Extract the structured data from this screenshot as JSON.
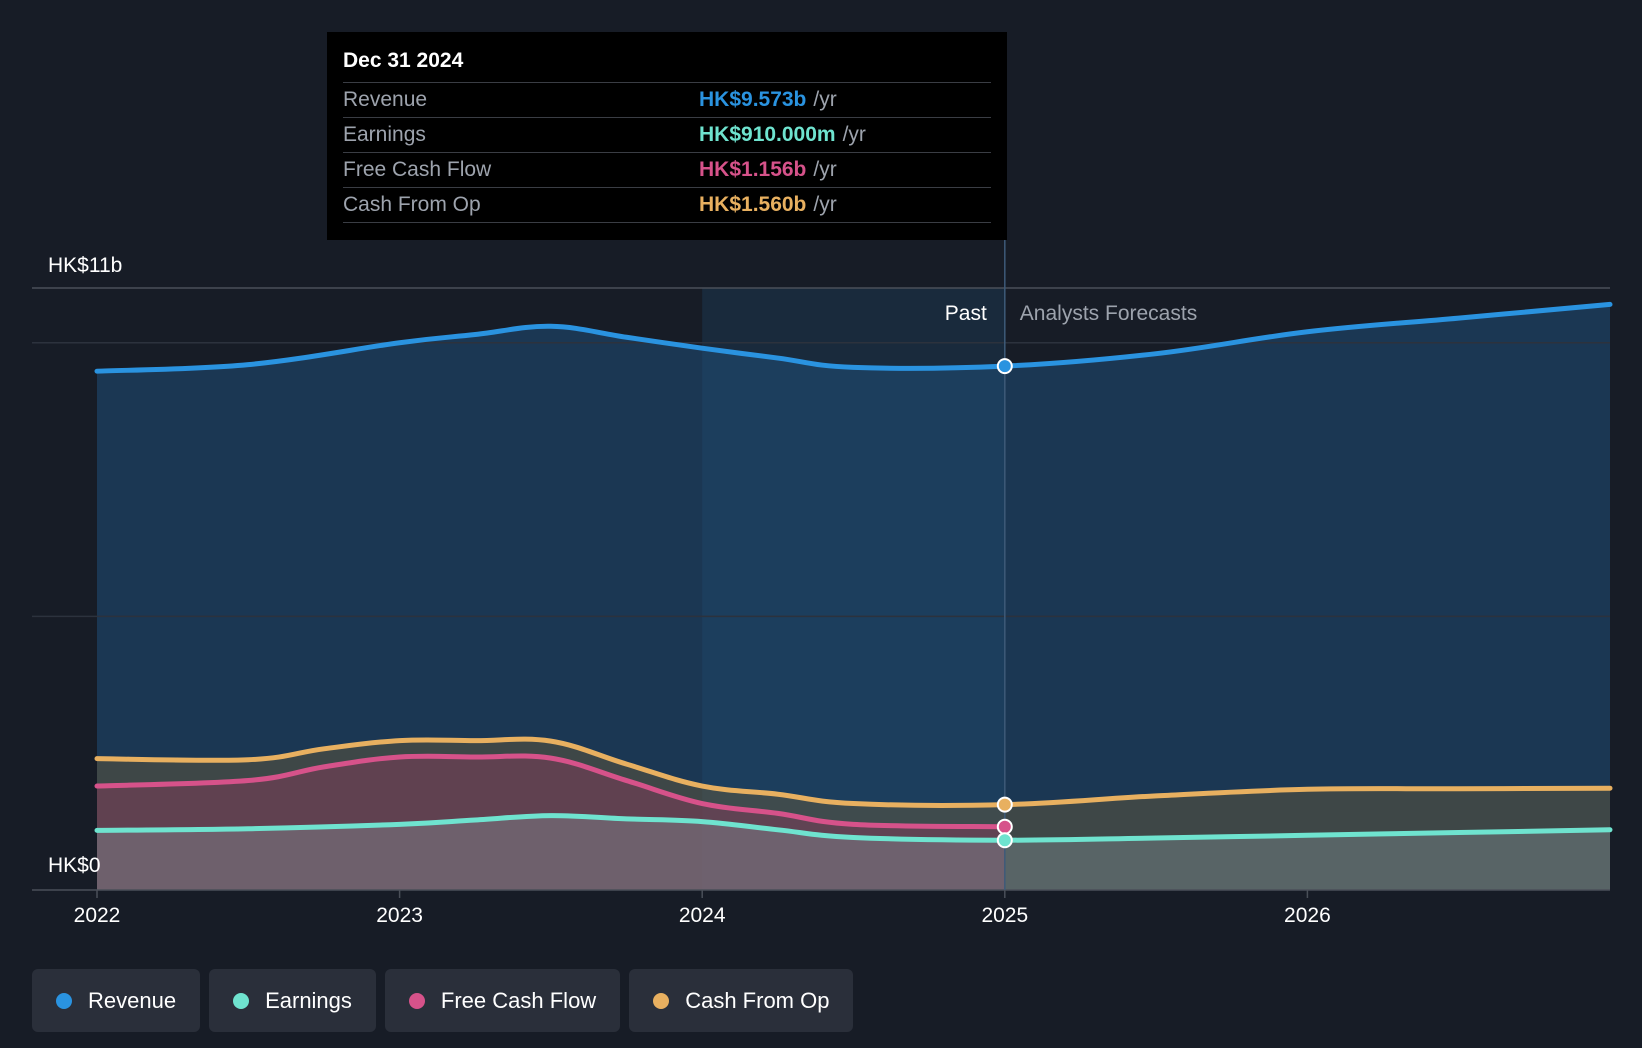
{
  "colors": {
    "background": "#171c26",
    "revenue": "#2a93e0",
    "earnings": "#6fe3cf",
    "free_cash_flow": "#d6528a",
    "cash_from_op": "#e8b060"
  },
  "tooltip": {
    "date": "Dec 31 2024",
    "rows": [
      {
        "label": "Revenue",
        "value": "HK$9.573b",
        "unit": "/yr"
      },
      {
        "label": "Earnings",
        "value": "HK$910.000m",
        "unit": "/yr"
      },
      {
        "label": "Free Cash Flow",
        "value": "HK$1.156b",
        "unit": "/yr"
      },
      {
        "label": "Cash From Op",
        "value": "HK$1.560b",
        "unit": "/yr"
      }
    ]
  },
  "legend": [
    {
      "label": "Revenue",
      "icon": "revenue-dot-icon"
    },
    {
      "label": "Earnings",
      "icon": "earnings-dot-icon"
    },
    {
      "label": "Free Cash Flow",
      "icon": "free-cash-flow-dot-icon"
    },
    {
      "label": "Cash From Op",
      "icon": "cash-from-op-dot-icon"
    }
  ],
  "chart_data": {
    "type": "area",
    "y_top_label": "HK$11b",
    "y_bottom_label": "HK$0",
    "ylim": [
      0,
      11
    ],
    "xlim": [
      2022,
      2027.0
    ],
    "x_ticks": [
      "2022",
      "2023",
      "2024",
      "2025",
      "2026"
    ],
    "x_tick_values": [
      2022,
      2023,
      2024,
      2025,
      2026
    ],
    "past_label": "Past",
    "forecast_label": "Analysts Forecasts",
    "divider_x": 2025,
    "highlight_start_x": 2024,
    "grid": true,
    "series": [
      {
        "name": "Revenue",
        "color_key": "revenue",
        "unit": "HK$b",
        "past": [
          [
            2022,
            9.48
          ],
          [
            2022.5,
            9.6
          ],
          [
            2023,
            10.0
          ],
          [
            2023.25,
            10.15
          ],
          [
            2023.5,
            10.3
          ],
          [
            2023.75,
            10.1
          ],
          [
            2024,
            9.9
          ],
          [
            2024.25,
            9.72
          ],
          [
            2024.5,
            9.55
          ],
          [
            2025,
            9.573
          ]
        ],
        "forecast": [
          [
            2025,
            9.573
          ],
          [
            2025.5,
            9.8
          ],
          [
            2026,
            10.2
          ],
          [
            2026.5,
            10.45
          ],
          [
            2027.0,
            10.7
          ]
        ]
      },
      {
        "name": "Cash From Op",
        "color_key": "cash_from_op",
        "unit": "HK$b",
        "past": [
          [
            2022,
            2.4
          ],
          [
            2022.5,
            2.38
          ],
          [
            2022.75,
            2.58
          ],
          [
            2023,
            2.73
          ],
          [
            2023.25,
            2.73
          ],
          [
            2023.5,
            2.72
          ],
          [
            2023.75,
            2.3
          ],
          [
            2024,
            1.9
          ],
          [
            2024.25,
            1.75
          ],
          [
            2024.5,
            1.58
          ],
          [
            2025,
            1.56
          ]
        ],
        "forecast": [
          [
            2025,
            1.56
          ],
          [
            2025.5,
            1.72
          ],
          [
            2026,
            1.84
          ],
          [
            2026.5,
            1.85
          ],
          [
            2027.0,
            1.86
          ]
        ]
      },
      {
        "name": "Free Cash Flow",
        "color_key": "free_cash_flow",
        "unit": "HK$b",
        "past": [
          [
            2022,
            1.9
          ],
          [
            2022.5,
            2.0
          ],
          [
            2022.75,
            2.25
          ],
          [
            2023,
            2.43
          ],
          [
            2023.25,
            2.43
          ],
          [
            2023.5,
            2.41
          ],
          [
            2023.75,
            2.0
          ],
          [
            2024,
            1.58
          ],
          [
            2024.25,
            1.4
          ],
          [
            2024.5,
            1.2
          ],
          [
            2025,
            1.156
          ]
        ],
        "forecast": []
      },
      {
        "name": "Earnings",
        "color_key": "earnings",
        "unit": "HK$b",
        "past": [
          [
            2022,
            1.09
          ],
          [
            2022.5,
            1.12
          ],
          [
            2023,
            1.2
          ],
          [
            2023.25,
            1.28
          ],
          [
            2023.5,
            1.36
          ],
          [
            2023.75,
            1.3
          ],
          [
            2024,
            1.25
          ],
          [
            2024.25,
            1.1
          ],
          [
            2024.5,
            0.96
          ],
          [
            2025,
            0.91
          ]
        ],
        "forecast": [
          [
            2025,
            0.91
          ],
          [
            2025.5,
            0.95
          ],
          [
            2026,
            1.0
          ],
          [
            2026.5,
            1.05
          ],
          [
            2027.0,
            1.1
          ]
        ]
      }
    ]
  }
}
